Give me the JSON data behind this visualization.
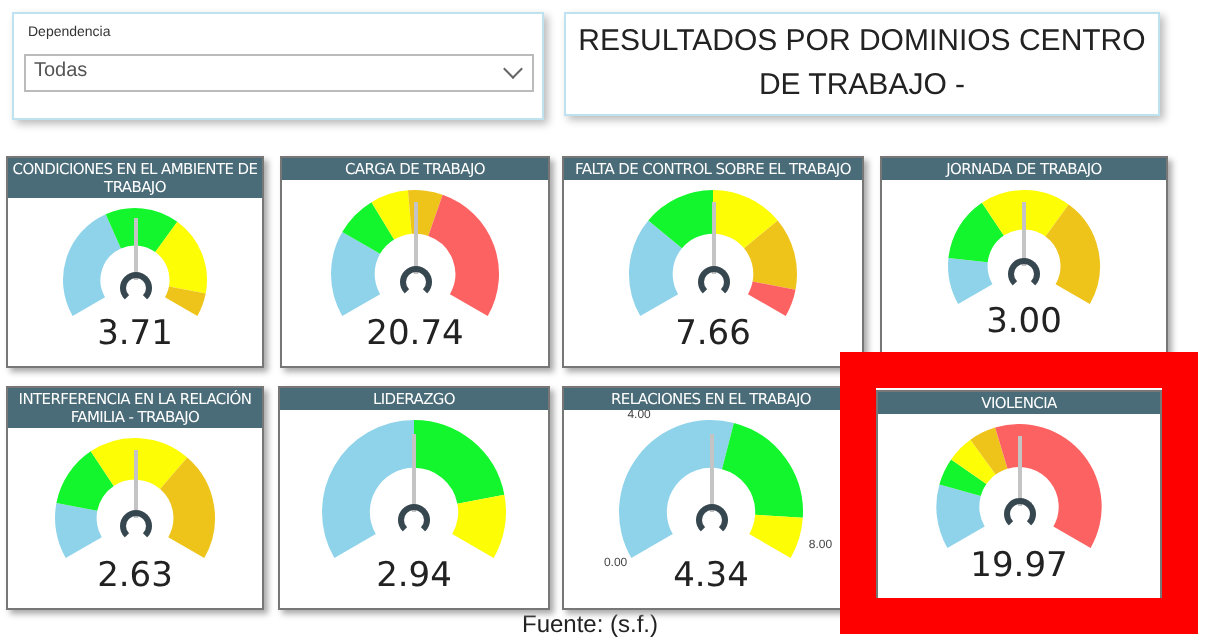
{
  "chart_data": [
    {
      "type": "other",
      "title": "RESULTADOS POR DOMINIOS CENTRO DE TRABAJO -",
      "annotations": [
        "Dependencia",
        "Todas",
        "Fuente: (s.f.)"
      ]
    },
    {
      "type": "donut",
      "title": "CONDICIONES EN EL AMBIENTE DE TRABAJO",
      "categories": [
        null,
        null,
        null,
        null
      ],
      "values": [
        40,
        25,
        27,
        8
      ],
      "colors": [
        "#8fd3ea",
        "#13f52c",
        "#fdfd06",
        "#efc41a"
      ],
      "annotations": [
        "3.71"
      ]
    },
    {
      "type": "donut",
      "title": "CARGA DE TRABAJO",
      "categories": [
        null,
        null,
        null,
        null,
        null
      ],
      "values": [
        25,
        12,
        11,
        10,
        42
      ],
      "colors": [
        "#8fd3ea",
        "#13f52c",
        "#fdfd06",
        "#efc41a",
        "#fd6262"
      ],
      "annotations": [
        "20.74"
      ]
    },
    {
      "type": "donut",
      "title": "FALTA DE CONTROL SOBRE EL TRABAJO",
      "categories": [
        null,
        null,
        null,
        null,
        null
      ],
      "values": [
        29,
        21,
        21,
        21,
        8
      ],
      "colors": [
        "#8fd3ea",
        "#13f52c",
        "#fdfd06",
        "#efc41a",
        "#fd6262"
      ],
      "annotations": [
        "7.66"
      ]
    },
    {
      "type": "donut",
      "title": "JORNADA DE TRABAJO",
      "categories": [
        null,
        null,
        null,
        null
      ],
      "values": [
        15,
        21,
        29,
        35
      ],
      "colors": [
        "#8fd3ea",
        "#13f52c",
        "#fdfd06",
        "#efc41a"
      ],
      "annotations": [
        "3.00"
      ]
    },
    {
      "type": "donut",
      "title": "INTERFERENCIA EN LA RELACIÓN FAMILIA - TRABAJO",
      "categories": [
        null,
        null,
        null,
        null
      ],
      "values": [
        17,
        19,
        31,
        33
      ],
      "colors": [
        "#8fd3ea",
        "#13f52c",
        "#fdfd06",
        "#efc41a"
      ],
      "annotations": [
        "2.63"
      ]
    },
    {
      "type": "donut",
      "title": "LIDERAZGO",
      "categories": [
        null,
        null,
        null
      ],
      "values": [
        50,
        33,
        17
      ],
      "colors": [
        "#8fd3ea",
        "#13f52c",
        "#fdfd06"
      ],
      "annotations": [
        "2.94"
      ]
    },
    {
      "type": "donut",
      "title": "RELACIONES EN EL TRABAJO",
      "categories": [
        null,
        null,
        null
      ],
      "values": [
        56,
        33,
        11
      ],
      "colors": [
        "#8fd3ea",
        "#13f52c",
        "#fdfd06"
      ],
      "annotations": [
        "4.34",
        "0.00",
        "4.00",
        "8.00"
      ]
    },
    {
      "type": "donut",
      "title": "VIOLENCIA",
      "categories": [
        null,
        null,
        null,
        null,
        null
      ],
      "values": [
        19,
        8,
        8,
        8,
        57
      ],
      "colors": [
        "#8fd3ea",
        "#13f52c",
        "#fdfd06",
        "#efc41a",
        "#fd6262"
      ],
      "annotations": [
        "19.97"
      ]
    }
  ]
}
